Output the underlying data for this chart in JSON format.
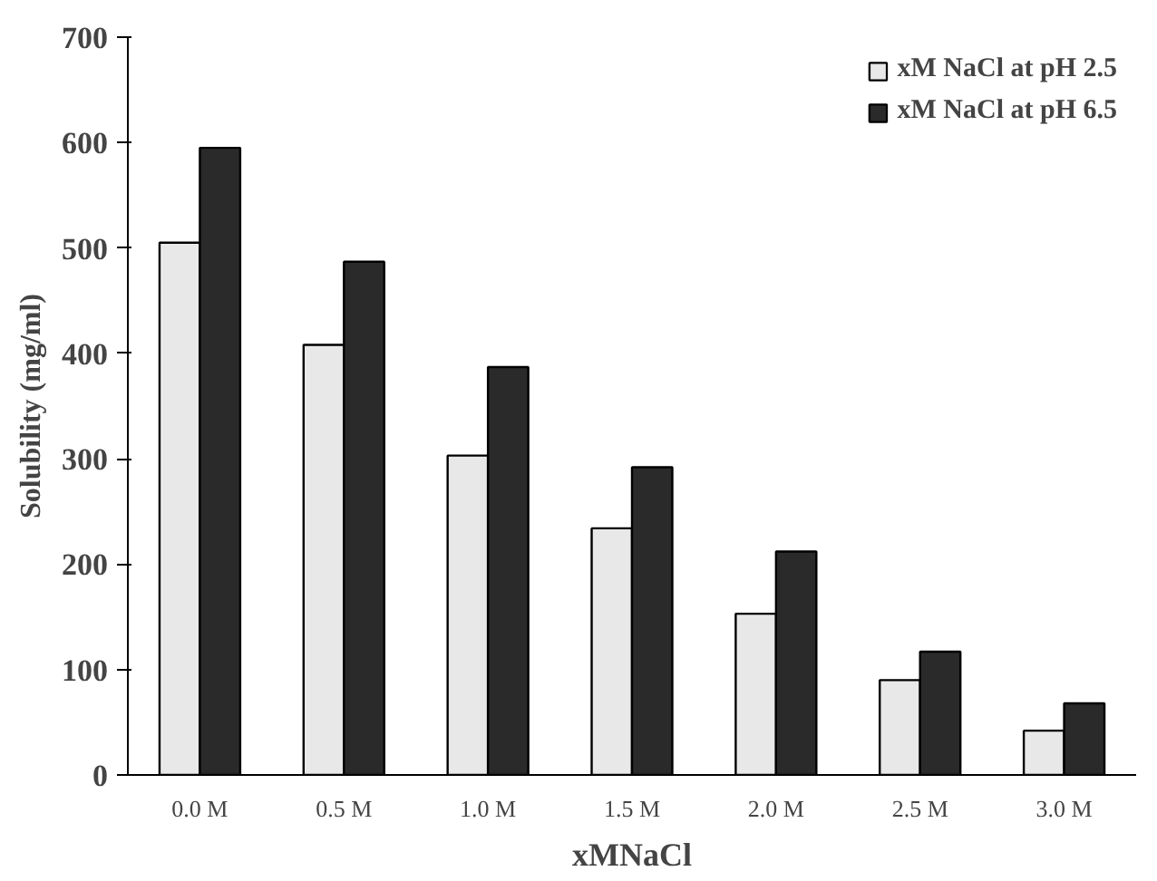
{
  "chart_data": {
    "type": "bar",
    "xlabel": "xMNaCl",
    "ylabel": "Solubility (mg/ml)",
    "categories": [
      "0.0 M",
      "0.5 M",
      "1.0 M",
      "1.5 M",
      "2.0 M",
      "2.5 M",
      "3.0 M"
    ],
    "series": [
      {
        "name": "xM NaCl at pH 2.5",
        "color": "#e8e8e8",
        "values": [
          505,
          408,
          303,
          234,
          153,
          90,
          42
        ]
      },
      {
        "name": "xM NaCl at pH 6.5",
        "color": "#2a2a2a",
        "values": [
          595,
          487,
          387,
          292,
          212,
          117,
          68
        ]
      }
    ],
    "ylim": [
      0,
      700
    ],
    "yticks": [
      0,
      100,
      200,
      300,
      400,
      500,
      600,
      700
    ],
    "grid": false,
    "legend": "top right"
  }
}
